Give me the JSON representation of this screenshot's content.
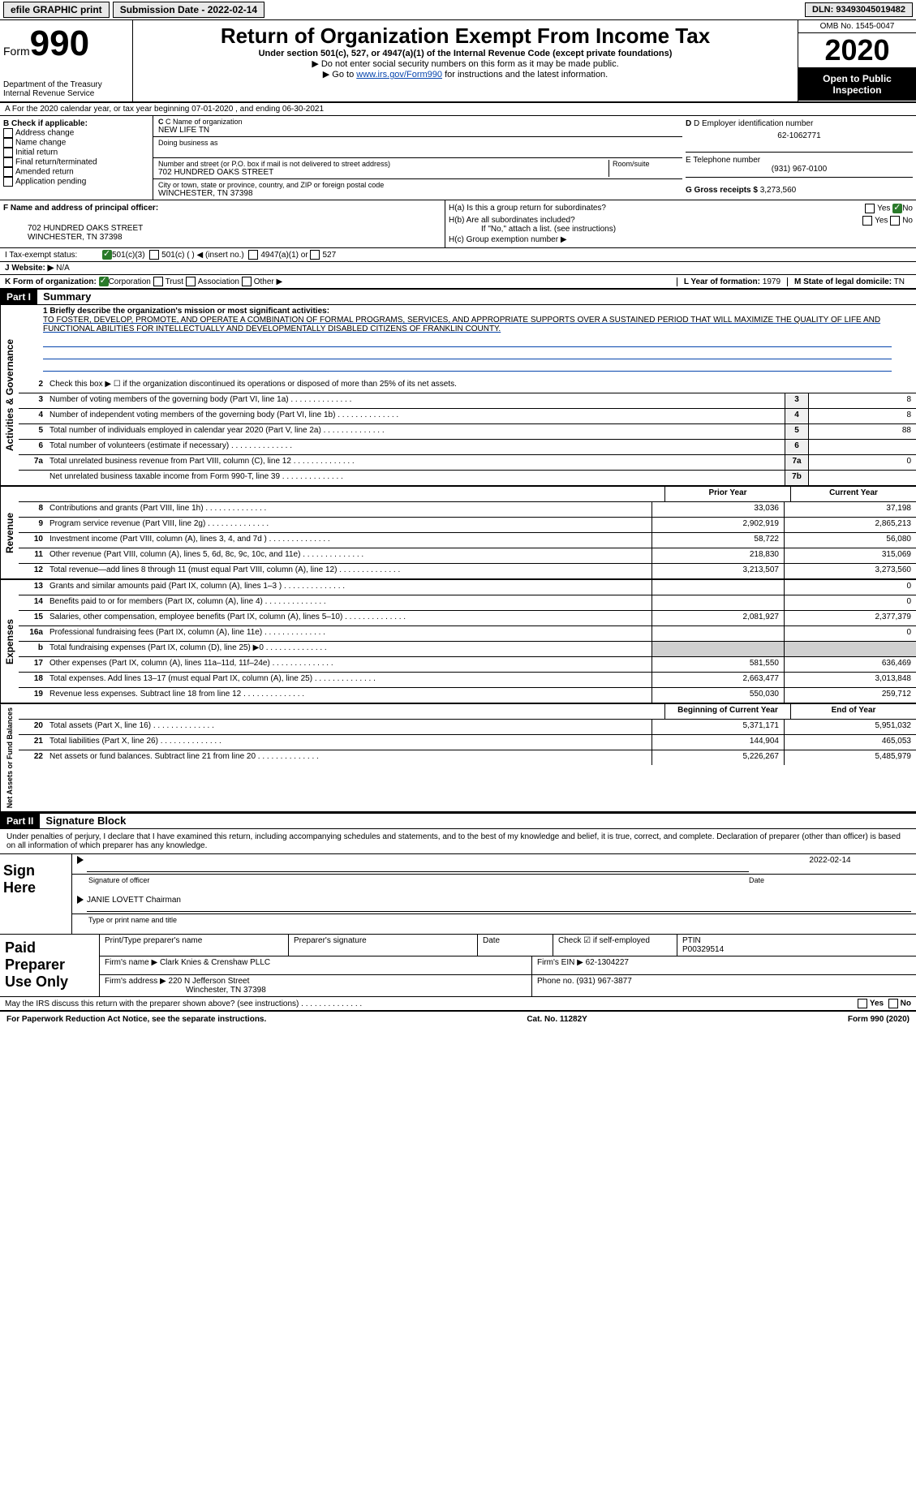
{
  "topbar": {
    "efile": "efile GRAPHIC print",
    "sub_label": "Submission Date - 2022-02-14",
    "dln": "DLN: 93493045019482"
  },
  "header": {
    "form_prefix": "Form",
    "form_number": "990",
    "dept": "Department of the Treasury\nInternal Revenue Service",
    "title": "Return of Organization Exempt From Income Tax",
    "subtitle": "Under section 501(c), 527, or 4947(a)(1) of the Internal Revenue Code (except private foundations)",
    "note1": "▶ Do not enter social security numbers on this form as it may be made public.",
    "note2_pre": "▶ Go to ",
    "note2_link": "www.irs.gov/Form990",
    "note2_post": " for instructions and the latest information.",
    "omb": "OMB No. 1545-0047",
    "year": "2020",
    "open": "Open to Public Inspection"
  },
  "row_a": "A For the 2020 calendar year, or tax year beginning 07-01-2020    , and ending 06-30-2021",
  "box_b": {
    "label": "B Check if applicable:",
    "items": [
      "Address change",
      "Name change",
      "Initial return",
      "Final return/terminated",
      "Amended return",
      "Application pending"
    ]
  },
  "box_c": {
    "label": "C Name of organization",
    "name": "NEW LIFE TN",
    "dba_label": "Doing business as",
    "street_label": "Number and street (or P.O. box if mail is not delivered to street address)",
    "room_label": "Room/suite",
    "street": "702 HUNDRED OAKS STREET",
    "city_label": "City or town, state or province, country, and ZIP or foreign postal code",
    "city": "WINCHESTER, TN  37398"
  },
  "box_d": {
    "label": "D Employer identification number",
    "ein": "62-1062771",
    "phone_label": "E Telephone number",
    "phone": "(931) 967-0100",
    "gross_label": "G Gross receipts $",
    "gross": "3,273,560"
  },
  "box_f": {
    "label": "F  Name and address of principal officer:",
    "addr1": "702 HUNDRED OAKS STREET",
    "addr2": "WINCHESTER, TN  37398"
  },
  "box_h": {
    "ha": "H(a)  Is this a group return for subordinates?",
    "hb": "H(b)  Are all subordinates included?",
    "hb_note": "If \"No,\" attach a list. (see instructions)",
    "hc": "H(c)  Group exemption number ▶",
    "yes": "Yes",
    "no": "No"
  },
  "row_i": {
    "label": "I   Tax-exempt status:",
    "opts": [
      "501(c)(3)",
      "501(c) (  ) ◀ (insert no.)",
      "4947(a)(1) or",
      "527"
    ]
  },
  "row_j": {
    "label": "J   Website: ▶",
    "val": "N/A"
  },
  "row_k": {
    "label": "K Form of organization:",
    "opts": [
      "Corporation",
      "Trust",
      "Association",
      "Other ▶"
    ],
    "l_label": "L Year of formation:",
    "l_val": "1979",
    "m_label": "M State of legal domicile:",
    "m_val": "TN"
  },
  "part1": {
    "hdr": "Part I",
    "title": "Summary"
  },
  "mission_label": "1  Briefly describe the organization's mission or most significant activities:",
  "mission": "TO FOSTER, DEVELOP, PROMOTE, AND OPERATE A COMBINATION OF FORMAL PROGRAMS, SERVICES, AND APPROPRIATE SUPPORTS OVER A SUSTAINED PERIOD THAT WILL MAXIMIZE THE QUALITY OF LIFE AND FUNCTIONAL ABILITIES FOR INTELLECTUALLY AND DEVELOPMENTALLY DISABLED CITIZENS OF FRANKLIN COUNTY.",
  "gov_rows": [
    {
      "n": "2",
      "d": "Check this box ▶ ☐ if the organization discontinued its operations or disposed of more than 25% of its net assets."
    },
    {
      "n": "3",
      "d": "Number of voting members of the governing body (Part VI, line 1a)",
      "rn": "3",
      "v": "8"
    },
    {
      "n": "4",
      "d": "Number of independent voting members of the governing body (Part VI, line 1b)",
      "rn": "4",
      "v": "8"
    },
    {
      "n": "5",
      "d": "Total number of individuals employed in calendar year 2020 (Part V, line 2a)",
      "rn": "5",
      "v": "88"
    },
    {
      "n": "6",
      "d": "Total number of volunteers (estimate if necessary)",
      "rn": "6",
      "v": ""
    },
    {
      "n": "7a",
      "d": "Total unrelated business revenue from Part VIII, column (C), line 12",
      "rn": "7a",
      "v": "0"
    },
    {
      "n": "",
      "d": "Net unrelated business taxable income from Form 990-T, line 39",
      "rn": "7b",
      "v": ""
    }
  ],
  "side_labels": {
    "gov": "Activities & Governance",
    "rev": "Revenue",
    "exp": "Expenses",
    "net": "Net Assets or Fund Balances"
  },
  "col_hdrs": {
    "prior": "Prior Year",
    "current": "Current Year",
    "begin": "Beginning of Current Year",
    "end": "End of Year"
  },
  "rev_rows": [
    {
      "n": "8",
      "d": "Contributions and grants (Part VIII, line 1h)",
      "p": "33,036",
      "c": "37,198"
    },
    {
      "n": "9",
      "d": "Program service revenue (Part VIII, line 2g)",
      "p": "2,902,919",
      "c": "2,865,213"
    },
    {
      "n": "10",
      "d": "Investment income (Part VIII, column (A), lines 3, 4, and 7d )",
      "p": "58,722",
      "c": "56,080"
    },
    {
      "n": "11",
      "d": "Other revenue (Part VIII, column (A), lines 5, 6d, 8c, 9c, 10c, and 11e)",
      "p": "218,830",
      "c": "315,069"
    },
    {
      "n": "12",
      "d": "Total revenue—add lines 8 through 11 (must equal Part VIII, column (A), line 12)",
      "p": "3,213,507",
      "c": "3,273,560"
    }
  ],
  "exp_rows": [
    {
      "n": "13",
      "d": "Grants and similar amounts paid (Part IX, column (A), lines 1–3 )",
      "p": "",
      "c": "0"
    },
    {
      "n": "14",
      "d": "Benefits paid to or for members (Part IX, column (A), line 4)",
      "p": "",
      "c": "0"
    },
    {
      "n": "15",
      "d": "Salaries, other compensation, employee benefits (Part IX, column (A), lines 5–10)",
      "p": "2,081,927",
      "c": "2,377,379"
    },
    {
      "n": "16a",
      "d": "Professional fundraising fees (Part IX, column (A), line 11e)",
      "p": "",
      "c": "0"
    },
    {
      "n": "b",
      "d": "Total fundraising expenses (Part IX, column (D), line 25) ▶0",
      "p": "shade",
      "c": "shade"
    },
    {
      "n": "17",
      "d": "Other expenses (Part IX, column (A), lines 11a–11d, 11f–24e)",
      "p": "581,550",
      "c": "636,469"
    },
    {
      "n": "18",
      "d": "Total expenses. Add lines 13–17 (must equal Part IX, column (A), line 25)",
      "p": "2,663,477",
      "c": "3,013,848"
    },
    {
      "n": "19",
      "d": "Revenue less expenses. Subtract line 18 from line 12",
      "p": "550,030",
      "c": "259,712"
    }
  ],
  "net_rows": [
    {
      "n": "20",
      "d": "Total assets (Part X, line 16)",
      "p": "5,371,171",
      "c": "5,951,032"
    },
    {
      "n": "21",
      "d": "Total liabilities (Part X, line 26)",
      "p": "144,904",
      "c": "465,053"
    },
    {
      "n": "22",
      "d": "Net assets or fund balances. Subtract line 21 from line 20",
      "p": "5,226,267",
      "c": "5,485,979"
    }
  ],
  "part2": {
    "hdr": "Part II",
    "title": "Signature Block"
  },
  "sig": {
    "penalty": "Under penalties of perjury, I declare that I have examined this return, including accompanying schedules and statements, and to the best of my knowledge and belief, it is true, correct, and complete. Declaration of preparer (other than officer) is based on all information of which preparer has any knowledge.",
    "sign_here": "Sign Here",
    "sig_officer": "Signature of officer",
    "date": "2022-02-14",
    "date_label": "Date",
    "name": "JANIE LOVETT Chairman",
    "name_label": "Type or print name and title",
    "paid": "Paid Preparer Use Only",
    "prep_name_label": "Print/Type preparer's name",
    "prep_sig_label": "Preparer's signature",
    "prep_date_label": "Date",
    "check_label": "Check ☑ if self-employed",
    "ptin_label": "PTIN",
    "ptin": "P00329514",
    "firm_name_label": "Firm's name   ▶",
    "firm_name": "Clark Knies & Crenshaw PLLC",
    "firm_ein_label": "Firm's EIN ▶",
    "firm_ein": "62-1304227",
    "firm_addr_label": "Firm's address ▶",
    "firm_addr": "220 N Jefferson Street",
    "firm_city": "Winchester, TN  37398",
    "firm_phone_label": "Phone no.",
    "firm_phone": "(931) 967-3877",
    "discuss": "May the IRS discuss this return with the preparer shown above? (see instructions)"
  },
  "footer": {
    "left": "For Paperwork Reduction Act Notice, see the separate instructions.",
    "mid": "Cat. No. 11282Y",
    "right": "Form 990 (2020)"
  }
}
